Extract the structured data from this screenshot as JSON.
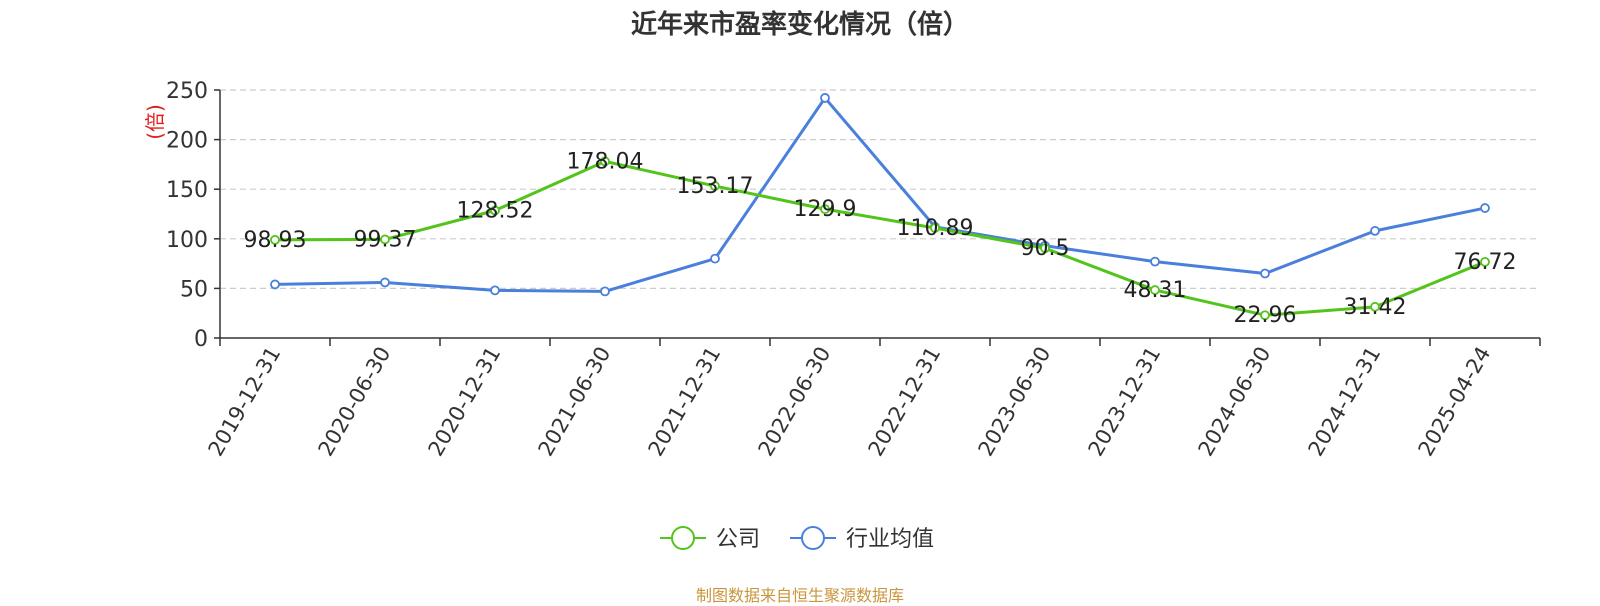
{
  "chart_data": {
    "type": "line",
    "title": "近年来市盈率变化情况（倍）",
    "ylabel": "(倍)",
    "xlabel": "",
    "ylim": [
      0,
      250
    ],
    "yticks": [
      0,
      50,
      100,
      150,
      200,
      250
    ],
    "categories": [
      "2019-12-31",
      "2020-06-30",
      "2020-12-31",
      "2021-06-30",
      "2021-12-31",
      "2022-06-30",
      "2022-12-31",
      "2023-06-30",
      "2023-12-31",
      "2024-06-30",
      "2024-12-31",
      "2025-04-24"
    ],
    "series": [
      {
        "name": "公司",
        "color": "#52c41a",
        "values": [
          98.93,
          99.37,
          128.52,
          178.04,
          153.17,
          129.9,
          110.89,
          90.5,
          48.31,
          22.96,
          31.42,
          76.72
        ],
        "data_labels": [
          "98.93",
          "99.37",
          "128.52",
          "178.04",
          "153.17",
          "129.9",
          "110.89",
          "90.5",
          "48.31",
          "22.96",
          "31.42",
          "76.72"
        ]
      },
      {
        "name": "行业均值",
        "color": "#4a7fdc",
        "values": [
          54,
          56,
          48,
          47,
          80,
          242,
          112,
          93,
          77,
          65,
          108,
          131
        ]
      }
    ],
    "grid": true,
    "legend_position": "bottom-center"
  },
  "source_note": "制图数据来自恒生聚源数据库",
  "colors": {
    "axis": "#333333",
    "grid": "#cccccc",
    "ylabel": "#e02020",
    "source_note": "#c8963c"
  }
}
